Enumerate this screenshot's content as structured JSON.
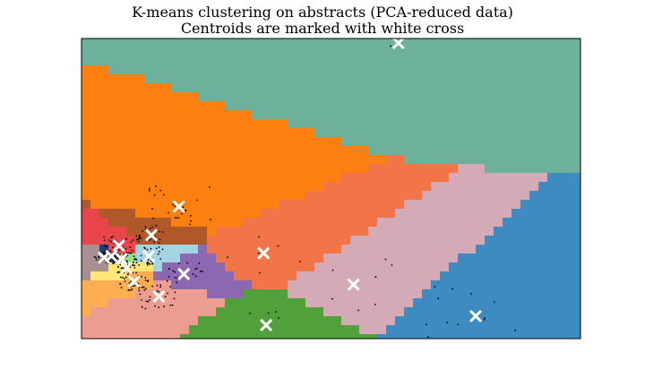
{
  "chart_data": {
    "type": "scatter",
    "title": "K-means clustering on abstracts (PCA-reduced data)",
    "subtitle": "Centroids are marked with white cross",
    "xlabel": "",
    "ylabel": "",
    "ticks": "none",
    "xlim": [
      0,
      100
    ],
    "ylim": [
      0,
      100
    ],
    "grid": false,
    "legend": "none",
    "background": "decision regions of 16 k-means clusters",
    "region_colors": [
      "#6db09c",
      "#fc7f0f",
      "#f27549",
      "#d3aab6",
      "#3d8bc0",
      "#51a03c",
      "#eb9d91",
      "#ffad51",
      "#8b68b1",
      "#a6d3e3",
      "#b15828",
      "#e8464a",
      "#a69090",
      "#ffe777",
      "#9bdd86",
      "#1f3b75"
    ],
    "centroids": [
      {
        "x": 63.5,
        "y": 98.5
      },
      {
        "x": 19.5,
        "y": 44.0
      },
      {
        "x": 36.5,
        "y": 28.5
      },
      {
        "x": 54.5,
        "y": 18.0
      },
      {
        "x": 79.0,
        "y": 7.5
      },
      {
        "x": 37.0,
        "y": 4.5
      },
      {
        "x": 15.5,
        "y": 14.0
      },
      {
        "x": 10.5,
        "y": 19.0
      },
      {
        "x": 20.5,
        "y": 21.5
      },
      {
        "x": 13.5,
        "y": 27.5
      },
      {
        "x": 14.0,
        "y": 34.5
      },
      {
        "x": 7.5,
        "y": 31.0
      },
      {
        "x": 4.5,
        "y": 27.0
      },
      {
        "x": 9.0,
        "y": 23.5
      },
      {
        "x": 8.0,
        "y": 26.5
      },
      {
        "x": 6.0,
        "y": 27.5
      }
    ],
    "marker_color": "#ffffff",
    "point_color": "#000000"
  }
}
